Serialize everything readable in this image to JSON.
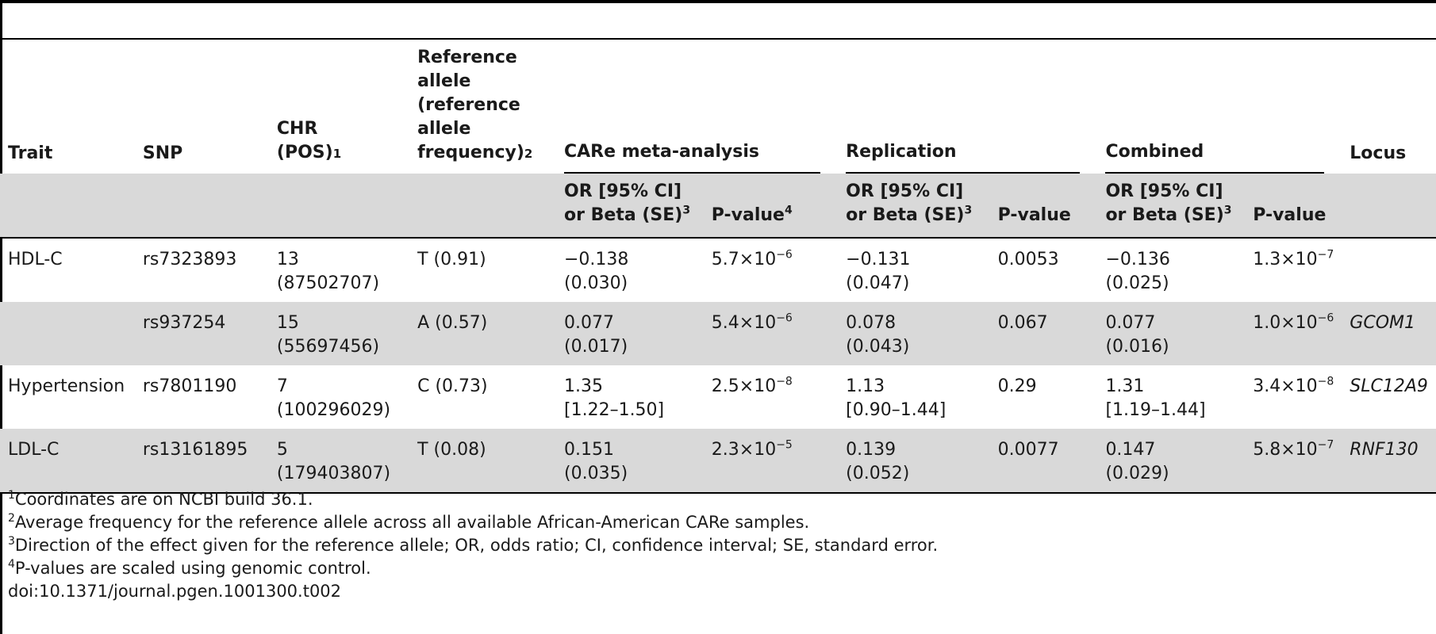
{
  "header": {
    "trait": "Trait",
    "snp": "SNP",
    "chr": [
      "CHR",
      "(POS)"
    ],
    "chr_sup": "1",
    "ref": [
      "Reference",
      "allele",
      "(reference",
      "allele",
      "frequency)"
    ],
    "ref_sup": "2",
    "groups": [
      "CARe meta-analysis",
      "Replication",
      "Combined"
    ],
    "locus": "Locus",
    "effect": [
      "OR [95% CI]",
      "or Beta (SE)"
    ],
    "effect_sup": "3",
    "pvalue": "P-value",
    "pvalue_sup": "4"
  },
  "rows": [
    {
      "trait": "HDL-C",
      "snp": "rs7323893",
      "chr": "13",
      "pos": "(87502707)",
      "ref": "T (0.91)",
      "care_eff": [
        "−0.138",
        "(0.030)"
      ],
      "care_p": "5.7×10",
      "care_exp": "−6",
      "rep_eff": [
        "−0.131",
        "(0.047)"
      ],
      "rep_p": "0.0053",
      "comb_eff": [
        "−0.136",
        "(0.025)"
      ],
      "comb_p": "1.3×10",
      "comb_exp": "−7",
      "locus": ""
    },
    {
      "trait": "",
      "snp": "rs937254",
      "chr": "15",
      "pos": "(55697456)",
      "ref": "A (0.57)",
      "care_eff": [
        "0.077",
        "(0.017)"
      ],
      "care_p": "5.4×10",
      "care_exp": "−6",
      "rep_eff": [
        "0.078",
        "(0.043)"
      ],
      "rep_p": "0.067",
      "comb_eff": [
        "0.077",
        "(0.016)"
      ],
      "comb_p": "1.0×10",
      "comb_exp": "−6",
      "locus": "GCOM1"
    },
    {
      "trait": "Hypertension",
      "snp": "rs7801190",
      "chr": "7",
      "pos": "(100296029)",
      "ref": "C (0.73)",
      "care_eff": [
        "1.35",
        "[1.22–1.50]"
      ],
      "care_p": "2.5×10",
      "care_exp": "−8",
      "rep_eff": [
        "1.13",
        "[0.90–1.44]"
      ],
      "rep_p": "0.29",
      "comb_eff": [
        "1.31",
        "[1.19–1.44]"
      ],
      "comb_p": "3.4×10",
      "comb_exp": "−8",
      "locus": "SLC12A9"
    },
    {
      "trait": "LDL-C",
      "snp": "rs13161895",
      "chr": "5",
      "pos": "(179403807)",
      "ref": "T (0.08)",
      "care_eff": [
        "0.151",
        "(0.035)"
      ],
      "care_p": "2.3×10",
      "care_exp": "−5",
      "rep_eff": [
        "0.139",
        "(0.052)"
      ],
      "rep_p": "0.0077",
      "comb_eff": [
        "0.147",
        "(0.029)"
      ],
      "comb_p": "5.8×10",
      "comb_exp": "−7",
      "locus": "RNF130"
    }
  ],
  "footnotes": [
    {
      "sup": "1",
      "text": "Coordinates are on NCBI build 36.1."
    },
    {
      "sup": "2",
      "text": "Average frequency for the reference allele across all available African-American CARe samples."
    },
    {
      "sup": "3",
      "text": "Direction of the effect given for the reference allele; OR, odds ratio; CI, confidence interval; SE, standard error."
    },
    {
      "sup": "4",
      "text": "P-values are scaled using genomic control."
    }
  ],
  "doi": "doi:10.1371/journal.pgen.1001300.t002"
}
